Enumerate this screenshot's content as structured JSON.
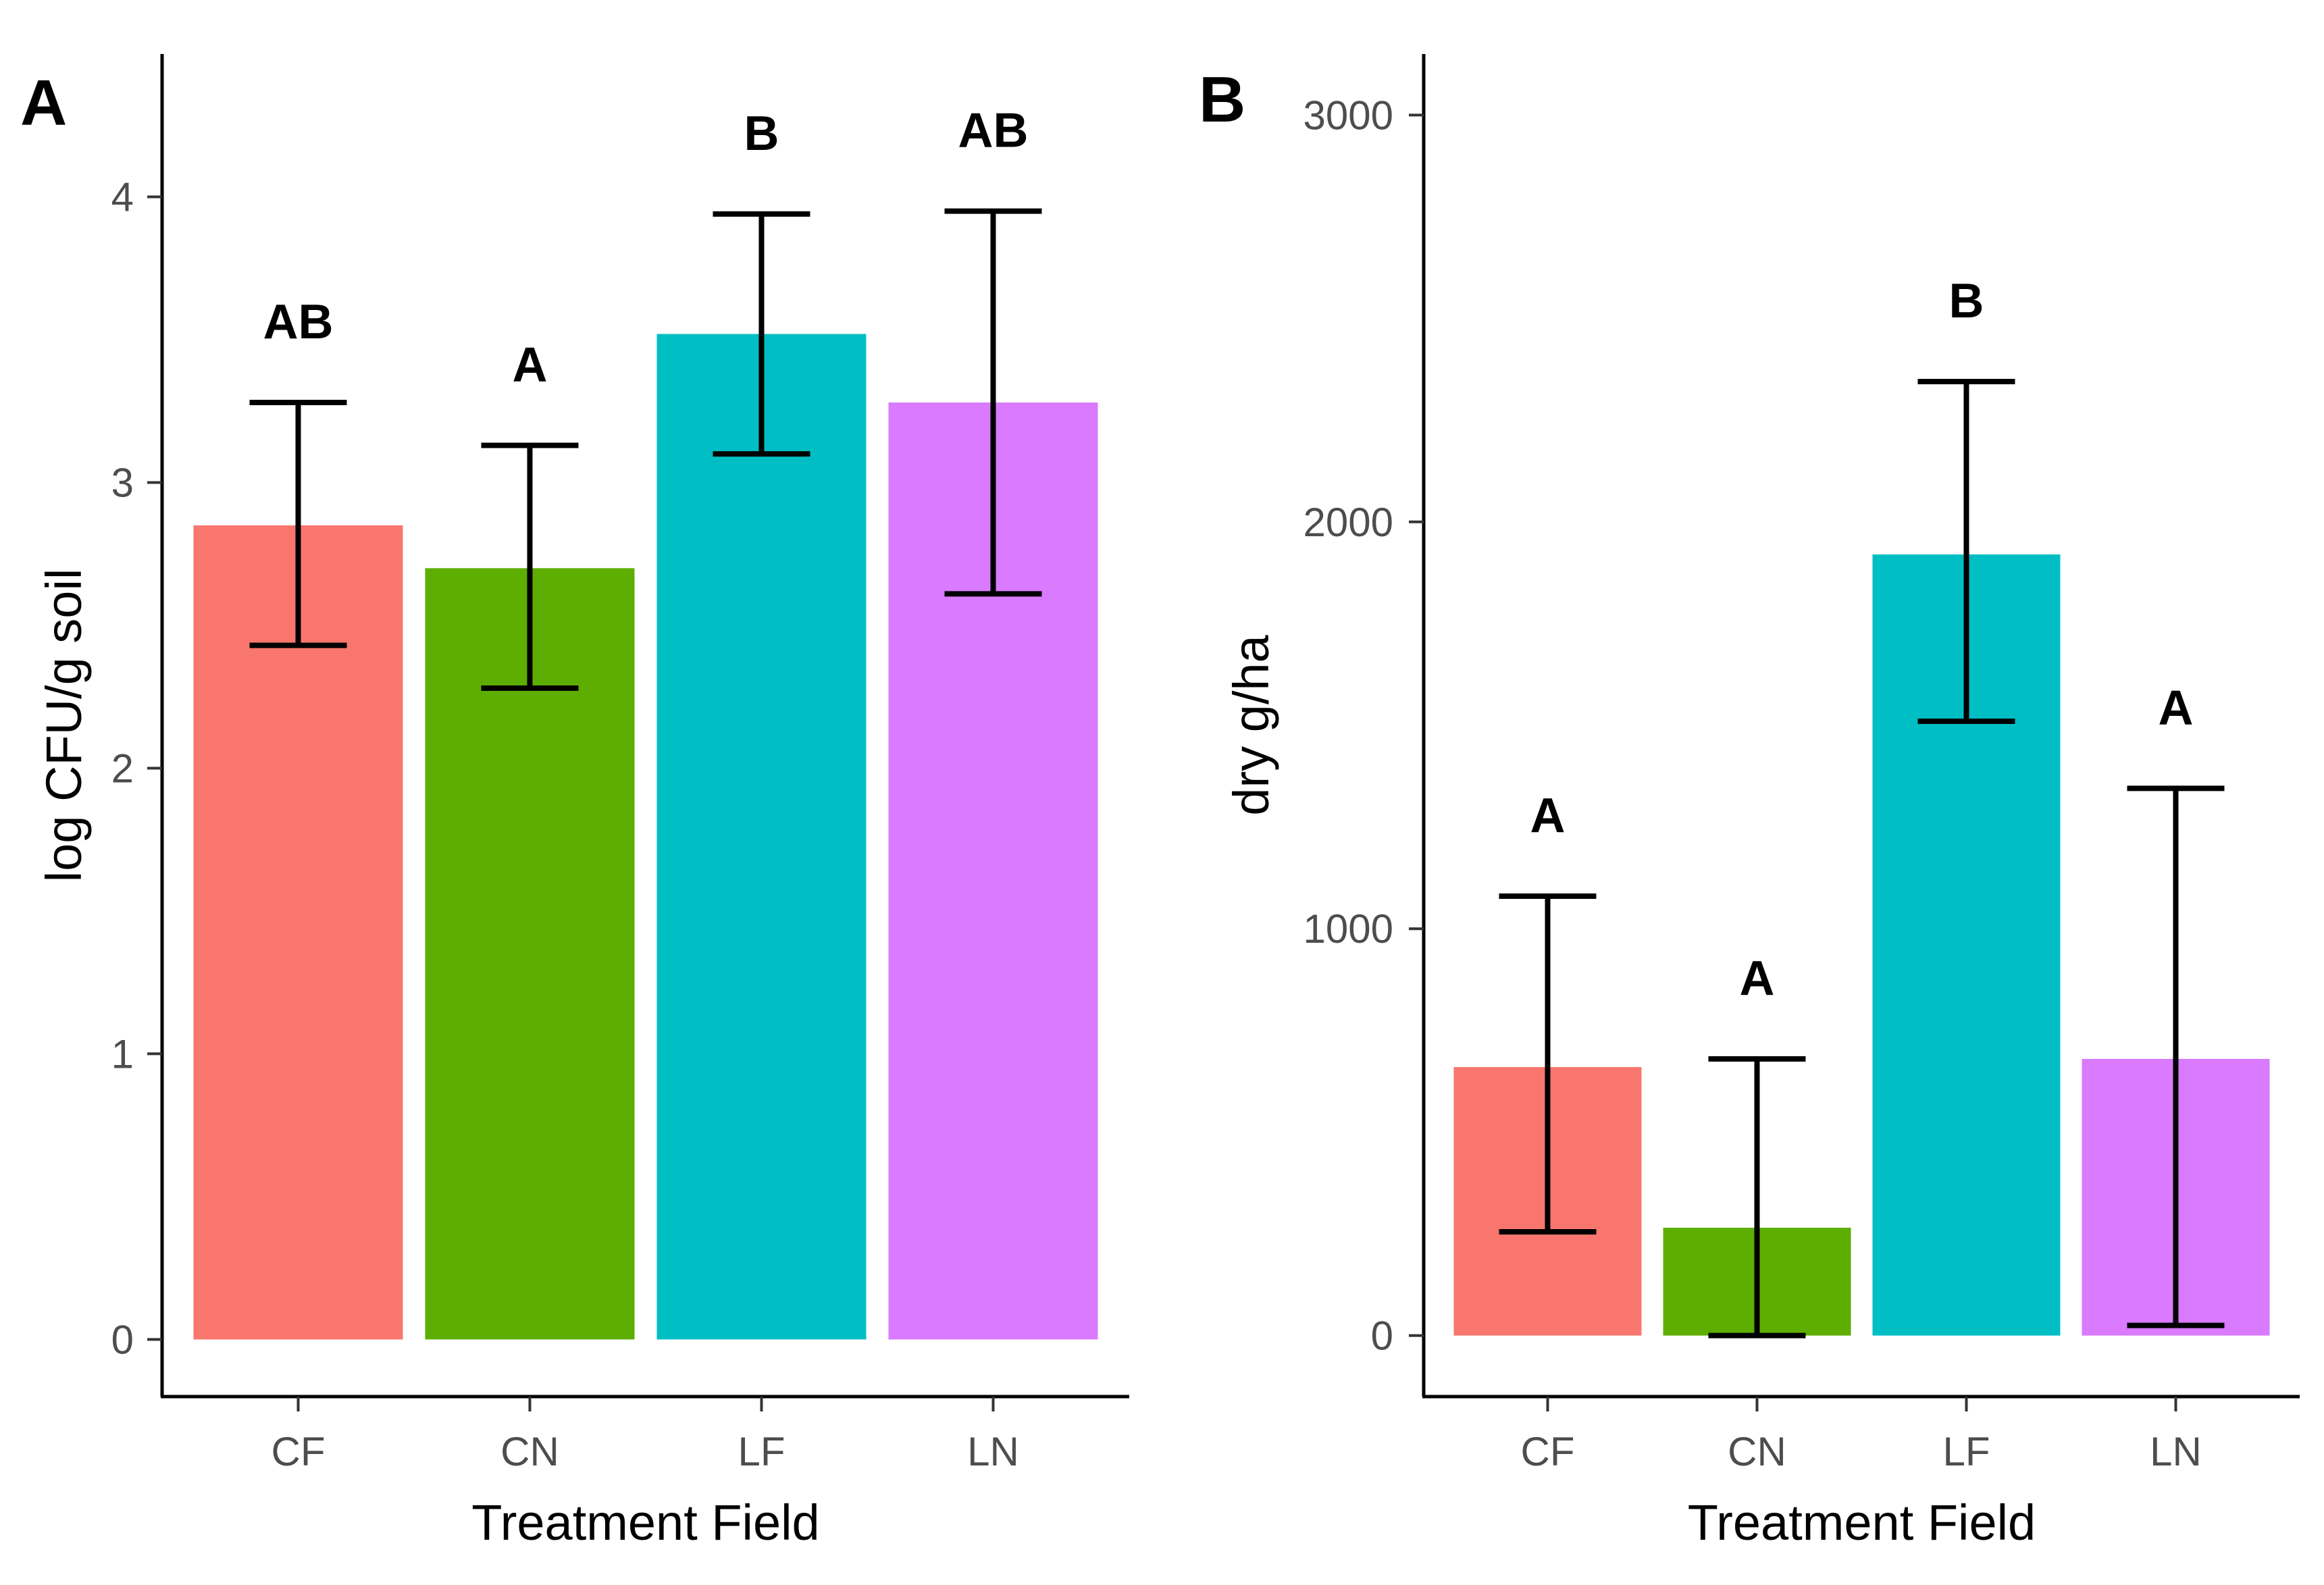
{
  "chart_data": [
    {
      "panel": "A",
      "type": "bar",
      "categories": [
        "CF",
        "CN",
        "LF",
        "LN"
      ],
      "values": [
        2.85,
        2.7,
        3.52,
        3.28
      ],
      "error_low": [
        2.43,
        2.28,
        3.1,
        2.61
      ],
      "error_high": [
        3.28,
        3.13,
        3.94,
        3.95
      ],
      "significance": [
        "AB",
        "A",
        "B",
        "AB"
      ],
      "colors": [
        "#F8766D",
        "#5DAE00",
        "#00BFC4",
        "#D97AFF"
      ],
      "xlabel": "Treatment Field",
      "ylabel": "log CFU/g soil",
      "ylim": [
        -0.2,
        4.5
      ],
      "yticks": [
        0,
        1,
        2,
        3,
        4
      ],
      "ytick_labels": [
        "0",
        "1",
        "2",
        "3",
        "4"
      ]
    },
    {
      "panel": "B",
      "type": "bar",
      "categories": [
        "CF",
        "CN",
        "LF",
        "LN"
      ],
      "values": [
        660,
        265,
        1920,
        680
      ],
      "error_low": [
        255,
        0,
        1510,
        25
      ],
      "error_high": [
        1080,
        680,
        2345,
        1345
      ],
      "significance": [
        "A",
        "A",
        "B",
        "A"
      ],
      "colors": [
        "#F8766D",
        "#5DAE00",
        "#00BFC4",
        "#D97AFF"
      ],
      "xlabel": "Treatment Field",
      "ylabel": "dry g/ha",
      "ylim": [
        -150,
        3150
      ],
      "yticks": [
        0,
        1000,
        2000,
        3000
      ],
      "ytick_labels": [
        "0",
        "1000",
        "2000",
        "3000"
      ]
    }
  ]
}
